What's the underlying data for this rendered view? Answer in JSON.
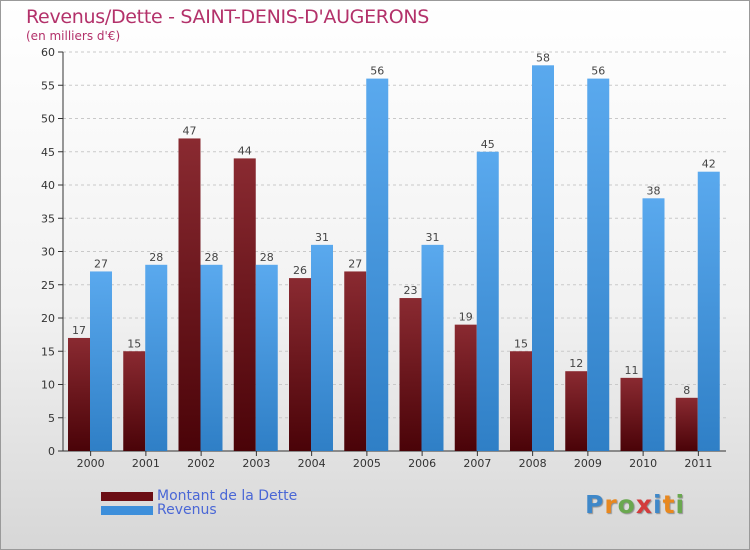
{
  "title": "Revenus/Dette - SAINT-DENIS-D'AUGERONS",
  "subtitle": "(en milliers d'€)",
  "logo": {
    "text": "Proxiti",
    "letter_colors": [
      "#3f88c9",
      "#e8881f",
      "#6aa84f",
      "#d33c3c",
      "#3f88c9",
      "#e8881f",
      "#6aa84f"
    ]
  },
  "legend": [
    {
      "label": "Montant de la Dette",
      "color": "#6b0d14"
    },
    {
      "label": "Revenus",
      "color": "#3d8fdb"
    }
  ],
  "chart_data": {
    "type": "bar",
    "categories": [
      "2000",
      "2001",
      "2002",
      "2003",
      "2004",
      "2005",
      "2006",
      "2007",
      "2008",
      "2009",
      "2010",
      "2011"
    ],
    "series": [
      {
        "name": "Montant de la Dette",
        "values": [
          17,
          15,
          47,
          44,
          26,
          27,
          23,
          19,
          15,
          12,
          11,
          8
        ],
        "color": "#7a1c24"
      },
      {
        "name": "Revenus",
        "values": [
          27,
          28,
          28,
          28,
          31,
          56,
          31,
          45,
          58,
          56,
          38,
          42
        ],
        "color": "#4a9be2"
      }
    ],
    "ylim": [
      0,
      60
    ],
    "yticks": [
      0,
      5,
      10,
      15,
      20,
      25,
      30,
      35,
      40,
      45,
      50,
      55,
      60
    ],
    "grid": true,
    "data_labels": true,
    "legend_position": "bottom-left"
  }
}
